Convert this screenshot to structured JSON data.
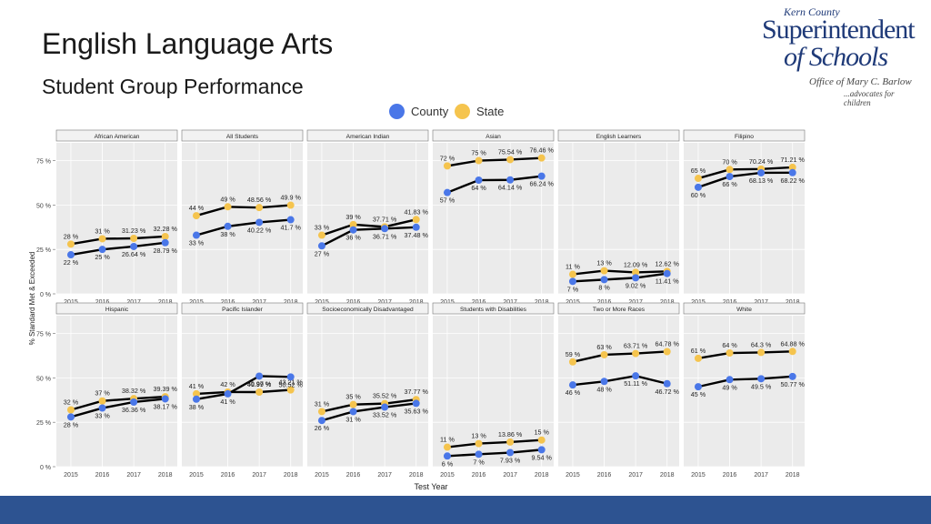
{
  "slide": {
    "title": "English Language Arts",
    "subtitle": "Student Group Performance"
  },
  "logo": {
    "line1": "Kern County",
    "line2": "Superintendent",
    "line3": "of Schools",
    "line4": "Office of Mary C. Barlow",
    "line5": "...advocates for children"
  },
  "colors": {
    "county": "#4a77e8",
    "state": "#f5c44e",
    "panel_bg": "#ebebeb",
    "footer": "#2d5391"
  },
  "chart_data": {
    "type": "line",
    "x": [
      "2015",
      "2016",
      "2017",
      "2018"
    ],
    "xlabel": "Test Year",
    "ylabel": "% Standard Met & Exceeded",
    "yticks": [
      "0 %",
      "25 %",
      "50 %",
      "75 %"
    ],
    "ylim": [
      0,
      85
    ],
    "legend": {
      "position": "top",
      "entries": [
        "County",
        "State"
      ]
    },
    "panels": [
      {
        "title": "African American",
        "county": [
          22,
          25,
          26.64,
          28.79
        ],
        "state": [
          28,
          31,
          31.23,
          32.28
        ],
        "county_labels": [
          "22 %",
          "25 %",
          "26.64 %",
          "28.79 %"
        ],
        "state_labels": [
          "28 %",
          "31 %",
          "31.23 %",
          "32.28 %"
        ]
      },
      {
        "title": "All Students",
        "county": [
          33,
          38,
          40.22,
          41.7
        ],
        "state": [
          44,
          49,
          48.56,
          49.9
        ],
        "county_labels": [
          "33 %",
          "38 %",
          "40.22 %",
          "41.7 %"
        ],
        "state_labels": [
          "44 %",
          "49 %",
          "48.56 %",
          "49.9 %"
        ]
      },
      {
        "title": "American Indian",
        "county": [
          27,
          36,
          36.71,
          37.48
        ],
        "state": [
          33,
          39,
          37.71,
          41.83
        ],
        "county_labels": [
          "27 %",
          "36 %",
          "36.71 %",
          "37.48 %"
        ],
        "state_labels": [
          "33 %",
          "39 %",
          "37.71 %",
          "41.83 %"
        ]
      },
      {
        "title": "Asian",
        "county": [
          57,
          64,
          64.14,
          66.24
        ],
        "state": [
          72,
          75,
          75.54,
          76.46
        ],
        "county_labels": [
          "57 %",
          "64 %",
          "64.14 %",
          "66.24 %"
        ],
        "state_labels": [
          "72 %",
          "75 %",
          "75.54 %",
          "76.46 %"
        ]
      },
      {
        "title": "English Learners",
        "county": [
          7,
          8,
          9.02,
          11.41
        ],
        "state": [
          11,
          13,
          12.09,
          12.62
        ],
        "county_labels": [
          "7 %",
          "8 %",
          "9.02 %",
          "11.41 %"
        ],
        "state_labels": [
          "11 %",
          "13 %",
          "12.09 %",
          "12.62 %"
        ]
      },
      {
        "title": "Filipino",
        "county": [
          60,
          66,
          68.13,
          68.22
        ],
        "state": [
          65,
          70,
          70.24,
          71.21
        ],
        "county_labels": [
          "60 %",
          "66 %",
          "68.13 %",
          "68.22 %"
        ],
        "state_labels": [
          "65 %",
          "70 %",
          "70.24 %",
          "71.21 %"
        ]
      },
      {
        "title": "Hispanic",
        "county": [
          28,
          33,
          36.36,
          38.17
        ],
        "state": [
          32,
          37,
          38.32,
          39.39
        ],
        "county_labels": [
          "28 %",
          "33 %",
          "36.36 %",
          "38.17 %"
        ],
        "state_labels": [
          "32 %",
          "37 %",
          "38.32 %",
          "39.39 %"
        ]
      },
      {
        "title": "Pacific Islander",
        "county": [
          38,
          41,
          50.97,
          50.52
        ],
        "state": [
          41,
          42,
          41.99,
          43.21
        ],
        "county_labels": [
          "38 %",
          "41 %",
          "50.97 %",
          "50.52 %"
        ],
        "state_labels": [
          "41 %",
          "42 %",
          "41.99 %",
          "43.21 %"
        ]
      },
      {
        "title": "Socioeconomically Disadvantaged",
        "county": [
          26,
          31,
          33.52,
          35.63
        ],
        "state": [
          31,
          35,
          35.52,
          37.77
        ],
        "county_labels": [
          "26 %",
          "31 %",
          "33.52 %",
          "35.63 %"
        ],
        "state_labels": [
          "31 %",
          "35 %",
          "35.52 %",
          "37.77 %"
        ]
      },
      {
        "title": "Students with Disabilities",
        "county": [
          6,
          7,
          7.93,
          9.54
        ],
        "state": [
          11,
          13,
          13.86,
          15
        ],
        "county_labels": [
          "6 %",
          "7 %",
          "7.93 %",
          "9.54 %"
        ],
        "state_labels": [
          "11 %",
          "13 %",
          "13.86 %",
          "15 %"
        ]
      },
      {
        "title": "Two or More Races",
        "county": [
          46,
          48,
          51.11,
          46.72
        ],
        "state": [
          59,
          63,
          63.71,
          64.78
        ],
        "county_labels": [
          "46 %",
          "48 %",
          "51.11 %",
          "46.72 %"
        ],
        "state_labels": [
          "59 %",
          "63 %",
          "63.71 %",
          "64.78 %"
        ]
      },
      {
        "title": "White",
        "county": [
          45,
          49,
          49.5,
          50.77
        ],
        "state": [
          61,
          64,
          64.3,
          64.88
        ],
        "county_labels": [
          "45 %",
          "49 %",
          "49.5 %",
          "50.77 %"
        ],
        "state_labels": [
          "61 %",
          "64 %",
          "64.3 %",
          "64.88 %"
        ]
      }
    ]
  }
}
